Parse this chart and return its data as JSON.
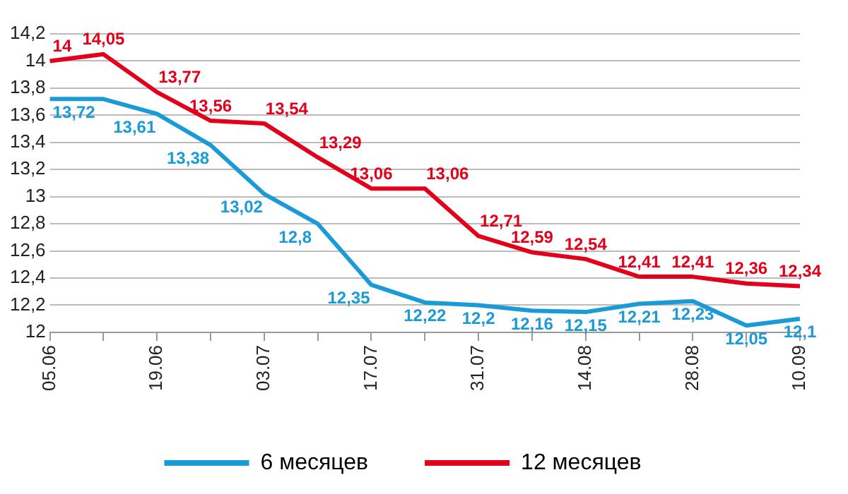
{
  "chart_data": {
    "type": "line",
    "categories": [
      "05.06",
      null,
      "19.06",
      null,
      "03.07",
      null,
      "17.07",
      null,
      "31.07",
      null,
      "14.08",
      null,
      "28.08",
      null,
      "10.09"
    ],
    "series": [
      {
        "name": "6 месяцев",
        "color": "#1a9ad6",
        "values": [
          13.72,
          13.72,
          13.61,
          13.38,
          13.02,
          12.8,
          12.35,
          12.22,
          12.2,
          12.16,
          12.15,
          12.21,
          12.23,
          12.05,
          12.1
        ],
        "value_labels": [
          "13,72",
          null,
          "13,61",
          "13,38",
          "13,02",
          "12,8",
          "12,35",
          "12,22",
          "12,2",
          "12,16",
          "12,15",
          "12,21",
          "12,23",
          "12,05",
          "12,1"
        ]
      },
      {
        "name": "12 месяцев",
        "color": "#e2001a",
        "values": [
          14,
          14.05,
          13.77,
          13.56,
          13.54,
          13.29,
          13.06,
          13.06,
          12.71,
          12.59,
          12.54,
          12.41,
          12.41,
          12.36,
          12.34
        ],
        "value_labels": [
          "14",
          "14,05",
          "13,77",
          "13,56",
          "13,54",
          "13,29",
          "13,06",
          "13,06",
          "12,71",
          "12,59",
          "12,54",
          "12,41",
          "12,41",
          "12,36",
          "12,34"
        ]
      }
    ],
    "ylim": [
      12,
      14.2
    ],
    "yticks": [
      {
        "value": 12,
        "label": "12"
      },
      {
        "value": 12.2,
        "label": "12,2"
      },
      {
        "value": 12.4,
        "label": "12,4"
      },
      {
        "value": 12.6,
        "label": "12,6"
      },
      {
        "value": 12.8,
        "label": "12,8"
      },
      {
        "value": 13,
        "label": "13"
      },
      {
        "value": 13.2,
        "label": "13,2"
      },
      {
        "value": 13.4,
        "label": "13,4"
      },
      {
        "value": 13.6,
        "label": "13,6"
      },
      {
        "value": 13.8,
        "label": "13,8"
      },
      {
        "value": 14,
        "label": "14"
      },
      {
        "value": 14.2,
        "label": "14,2"
      }
    ],
    "grid": "y",
    "legend": "bottom",
    "marker": "none",
    "line_style": "solid"
  }
}
